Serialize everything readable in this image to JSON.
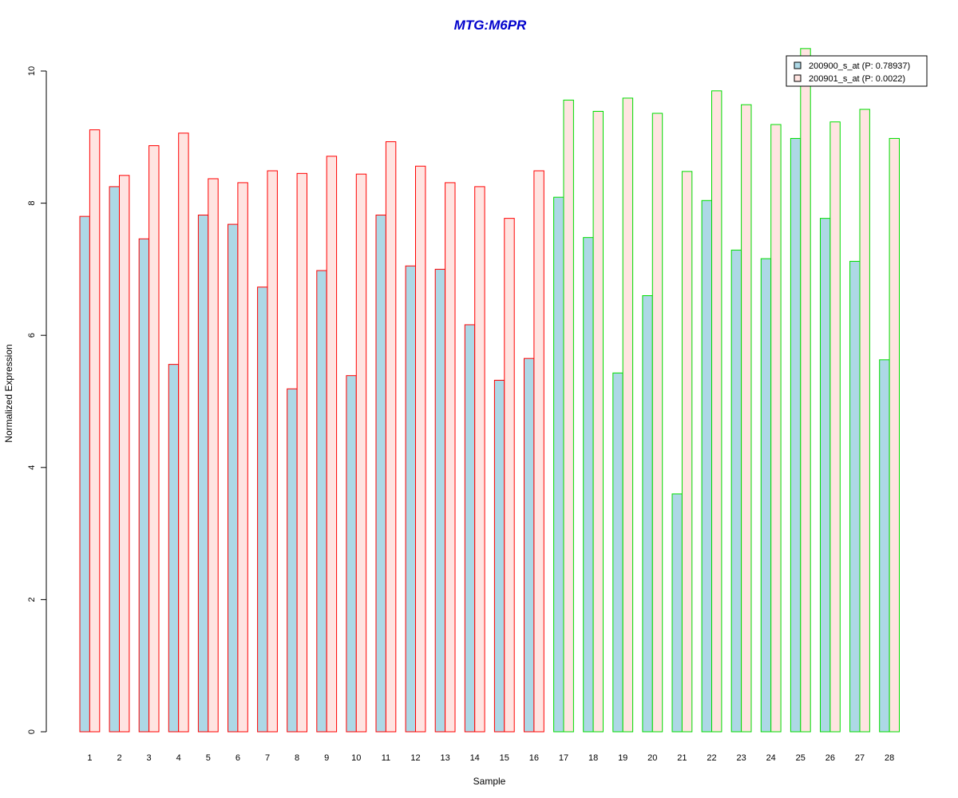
{
  "chart_data": {
    "type": "bar",
    "title": "MTG:M6PR",
    "xlabel": "Sample",
    "ylabel": "Normalized Expression",
    "ylim": [
      0,
      10
    ],
    "yticks": [
      0,
      2,
      4,
      6,
      8,
      10
    ],
    "grid": false,
    "legend_position": "top-right",
    "categories": [
      "1",
      "2",
      "3",
      "4",
      "5",
      "6",
      "7",
      "8",
      "9",
      "10",
      "11",
      "12",
      "13",
      "14",
      "15",
      "16",
      "17",
      "18",
      "19",
      "20",
      "21",
      "22",
      "23",
      "24",
      "25",
      "26",
      "27",
      "28"
    ],
    "groups": [
      {
        "samples": [
          1,
          16
        ],
        "border_color": "#ff0000"
      },
      {
        "samples": [
          17,
          28
        ],
        "border_color": "#00dd00"
      }
    ],
    "series": [
      {
        "name": "200900_s_at (P: 0.78937)",
        "fill": "#add8e6",
        "values": [
          7.8,
          8.25,
          7.46,
          5.56,
          7.82,
          7.68,
          6.73,
          5.19,
          6.98,
          5.39,
          7.82,
          7.05,
          7.0,
          6.16,
          5.32,
          5.65,
          8.09,
          7.48,
          5.43,
          6.6,
          3.6,
          8.04,
          7.29,
          7.16,
          8.98,
          7.77,
          7.12,
          5.63
        ]
      },
      {
        "name": "200901_s_at (P: 0.0022)",
        "fill": "#ffe4e1",
        "values": [
          9.11,
          8.42,
          8.87,
          9.06,
          8.37,
          8.31,
          8.49,
          8.45,
          8.71,
          8.44,
          8.93,
          8.56,
          8.31,
          8.25,
          7.77,
          8.49,
          9.56,
          9.39,
          9.59,
          9.36,
          8.48,
          9.7,
          9.49,
          9.19,
          10.34,
          9.23,
          9.42,
          8.98
        ]
      }
    ]
  },
  "colors": {
    "title": "#0000cc",
    "axis": "#000000"
  }
}
